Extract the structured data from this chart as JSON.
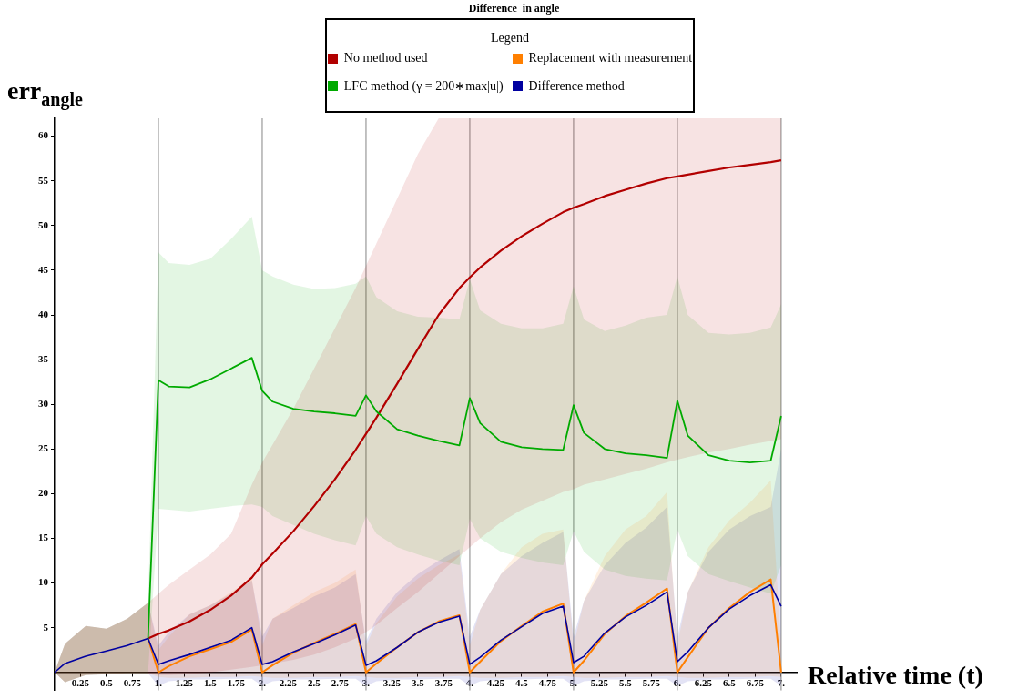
{
  "chart_data": {
    "type": "line",
    "title": "Difference  in angle",
    "xlabel": "Relative time (t)",
    "ylabel": "err$_{angle}$",
    "legend_title": "Legend",
    "legend": "top",
    "x": [
      0,
      0.1,
      0.3,
      0.5,
      0.7,
      0.9,
      1,
      1.1,
      1.3,
      1.5,
      1.7,
      1.9,
      2,
      2.1,
      2.3,
      2.5,
      2.7,
      2.9,
      3,
      3.1,
      3.3,
      3.5,
      3.7,
      3.9,
      4,
      4.1,
      4.3,
      4.5,
      4.7,
      4.9,
      5,
      5.1,
      5.3,
      5.5,
      5.7,
      5.9,
      6,
      6.1,
      6.3,
      6.5,
      6.7,
      6.9,
      7
    ],
    "xlim": [
      0,
      7.15
    ],
    "xticks": [
      0.25,
      0.5,
      0.75,
      {
        "value": 1,
        "label": "1."
      },
      1.25,
      1.5,
      1.75,
      {
        "value": 2,
        "label": "2."
      },
      2.25,
      2.5,
      2.75,
      {
        "value": 3,
        "label": "3."
      },
      3.25,
      3.5,
      3.75,
      {
        "value": 4,
        "label": "4."
      },
      4.25,
      4.5,
      4.75,
      {
        "value": 5,
        "label": "5."
      },
      5.25,
      5.5,
      5.75,
      {
        "value": 6,
        "label": "6."
      },
      6.25,
      6.5,
      6.75,
      {
        "value": 7,
        "label": "7."
      }
    ],
    "ylim": [
      -2,
      62
    ],
    "yticks": [
      5,
      10,
      15,
      20,
      25,
      30,
      35,
      40,
      45,
      50,
      55,
      60
    ],
    "ref_lines": [
      {
        "axis": "x",
        "value": 1,
        "color": "#999999"
      },
      {
        "axis": "x",
        "value": 2,
        "color": "#999999"
      },
      {
        "axis": "x",
        "value": 3,
        "color": "#999999"
      },
      {
        "axis": "x",
        "value": 4,
        "color": "#999999"
      },
      {
        "axis": "x",
        "value": 5,
        "color": "#999999"
      },
      {
        "axis": "x",
        "value": 6,
        "color": "#999999"
      },
      {
        "axis": "x",
        "value": 7,
        "color": "#999999"
      }
    ],
    "series": [
      {
        "name": "No method used",
        "color": "#b20000",
        "values": [
          null,
          null,
          null,
          null,
          null,
          3.8,
          4.3,
          4.7,
          5.7,
          7,
          8.6,
          10.6,
          12.1,
          13.3,
          15.8,
          18.6,
          21.6,
          24.9,
          26.7,
          28.5,
          32.3,
          36.2,
          40,
          43,
          44.2,
          45.3,
          47.2,
          48.8,
          50.2,
          51.5,
          52,
          52.4,
          53.3,
          54,
          54.7,
          55.3,
          55.5,
          55.7,
          56.1,
          56.5,
          56.8,
          57.1,
          57.3
        ],
        "lower": [
          0,
          -1.1,
          -0.3,
          -0.2,
          -0.1,
          -0.1,
          -0.3,
          -0.3,
          -0.2,
          0,
          0.3,
          0.6,
          0.8,
          1,
          1.4,
          2,
          2.8,
          3.8,
          4.5,
          5.3,
          7.2,
          9,
          11,
          13,
          14,
          15,
          16.8,
          18.2,
          19.2,
          20.2,
          20.5,
          21,
          21.6,
          22.2,
          22.8,
          23.5,
          23.8,
          24.1,
          24.6,
          25,
          25.5,
          25.9,
          26.1
        ],
        "upper": [
          0,
          3.2,
          5.2,
          4.9,
          6,
          7.8,
          8.8,
          9.8,
          11.5,
          13.2,
          15.5,
          21,
          23.5,
          25.5,
          29.5,
          34,
          38.5,
          43,
          45.5,
          48,
          53,
          58,
          62,
          62,
          62,
          62,
          62,
          62,
          62,
          62,
          62,
          62,
          62,
          62,
          62,
          62,
          62,
          62,
          62,
          62,
          62,
          62,
          62
        ]
      },
      {
        "name": "Replacement with measurement",
        "color": "#ff7f00",
        "values": [
          null,
          null,
          null,
          null,
          null,
          3.8,
          0,
          0.7,
          1.8,
          2.6,
          3.4,
          4.8,
          0,
          0.8,
          2.2,
          3.3,
          4.3,
          5.4,
          0,
          1,
          2.8,
          4.5,
          5.7,
          6.4,
          0,
          1.2,
          3.5,
          5.2,
          6.8,
          7.7,
          0,
          1.3,
          4.3,
          6.3,
          7.8,
          9.4,
          0,
          1.7,
          5,
          7.2,
          9,
          10.4,
          0
        ],
        "lower": [
          0,
          -1.1,
          -0.3,
          -0.2,
          -0.1,
          -0.1,
          -0.5,
          -0.6,
          -0.6,
          -0.5,
          -0.5,
          -0.4,
          -0.5,
          -0.6,
          -0.6,
          -0.5,
          -0.5,
          -0.4,
          -0.5,
          -0.6,
          -0.6,
          -0.5,
          -0.5,
          -0.4,
          -0.5,
          -0.6,
          -0.6,
          -0.5,
          -0.5,
          -0.4,
          -0.5,
          -0.6,
          -0.6,
          -0.5,
          -0.5,
          -0.4,
          -0.5,
          -0.6,
          -0.6,
          -0.5,
          -0.5,
          -0.4,
          -0.5
        ],
        "upper": [
          0,
          3.2,
          5.2,
          4.9,
          6,
          7.8,
          2.5,
          4,
          6.5,
          7.5,
          9,
          10.5,
          3,
          6,
          7.5,
          9,
          10,
          11.5,
          3,
          5.5,
          8.5,
          10.5,
          12,
          13.2,
          3,
          7,
          11,
          14,
          15.5,
          16,
          3,
          8,
          13,
          16,
          17.5,
          20.2,
          3,
          9,
          14,
          17,
          19,
          21.5,
          3
        ]
      },
      {
        "name": "LFC method (γ = 200∗max|u|)",
        "color": "#00aa00",
        "values": [
          null,
          null,
          null,
          null,
          null,
          3.8,
          32.7,
          32,
          31.9,
          32.8,
          34,
          35.2,
          31.5,
          30.3,
          29.5,
          29.2,
          29,
          28.7,
          31,
          29.2,
          27.2,
          26.5,
          25.9,
          25.4,
          30.7,
          27.9,
          25.8,
          25.2,
          25,
          24.9,
          29.9,
          26.8,
          25,
          24.5,
          24.3,
          24,
          30.4,
          26.5,
          24.3,
          23.7,
          23.5,
          23.7,
          28.7
        ],
        "lower": [
          0,
          -1.1,
          -0.3,
          -0.2,
          -0.1,
          -0.1,
          18.3,
          18.2,
          18,
          18.3,
          18.6,
          18.8,
          18.5,
          17.5,
          16.5,
          15.5,
          14.8,
          14.2,
          17.5,
          15.5,
          14,
          13.2,
          12.5,
          12,
          17.2,
          15,
          13.5,
          12.8,
          12.3,
          12,
          15.8,
          13.5,
          11.5,
          10.8,
          10.5,
          10.3,
          16,
          13,
          11,
          10.2,
          9.5,
          8.8,
          12
        ],
        "upper": [
          0,
          3.2,
          5.2,
          4.9,
          6,
          7.8,
          47,
          45.8,
          45.6,
          46.3,
          48.5,
          51,
          45,
          44.3,
          43.4,
          42.9,
          43,
          43.5,
          44.3,
          42,
          40.4,
          39.8,
          39.7,
          39.5,
          44,
          40.5,
          39,
          38.5,
          38.5,
          39,
          43.2,
          39.5,
          38.2,
          38.8,
          39.7,
          40,
          44.3,
          40,
          38,
          37.8,
          38,
          38.6,
          41.2
        ]
      },
      {
        "name": "Difference method",
        "color": "#0000a0",
        "values": [
          0,
          1,
          1.8,
          2.4,
          3,
          3.8,
          0.9,
          1.3,
          2,
          2.8,
          3.6,
          5,
          0.9,
          1.2,
          2.3,
          3.2,
          4.2,
          5.3,
          0.8,
          1.3,
          2.8,
          4.5,
          5.6,
          6.3,
          0.9,
          1.7,
          3.6,
          5.1,
          6.6,
          7.4,
          1.1,
          1.8,
          4.4,
          6.2,
          7.5,
          9,
          1.2,
          2.3,
          5,
          7.1,
          8.6,
          9.8,
          7.4
        ],
        "lower": [
          0,
          -1.1,
          -0.3,
          -0.2,
          -0.1,
          -0.1,
          -1.5,
          -1,
          -0.8,
          -0.8,
          -0.7,
          -0.7,
          -1.5,
          -1,
          -0.8,
          -0.8,
          -0.7,
          -0.7,
          -1.5,
          -1,
          -0.8,
          -0.8,
          -0.7,
          -0.7,
          -1.5,
          -1,
          -0.8,
          -0.8,
          -0.7,
          -0.7,
          -1.5,
          -1,
          -0.8,
          -0.8,
          -0.7,
          -0.7,
          -1.5,
          -1,
          -0.8,
          -0.8,
          -0.7,
          -0.7,
          -1.5
        ],
        "upper": [
          0,
          3.2,
          5.2,
          4.9,
          6,
          7.8,
          3,
          4.5,
          6.5,
          7.5,
          8.8,
          10.3,
          4,
          6,
          7.2,
          8.5,
          9.5,
          11,
          3.5,
          6,
          9,
          11,
          12.5,
          13.8,
          4,
          7,
          11,
          13,
          14.5,
          15.7,
          4,
          8,
          12,
          14.5,
          16.2,
          18.5,
          4,
          9,
          13.5,
          16,
          17.5,
          18.5,
          25
        ]
      }
    ]
  }
}
